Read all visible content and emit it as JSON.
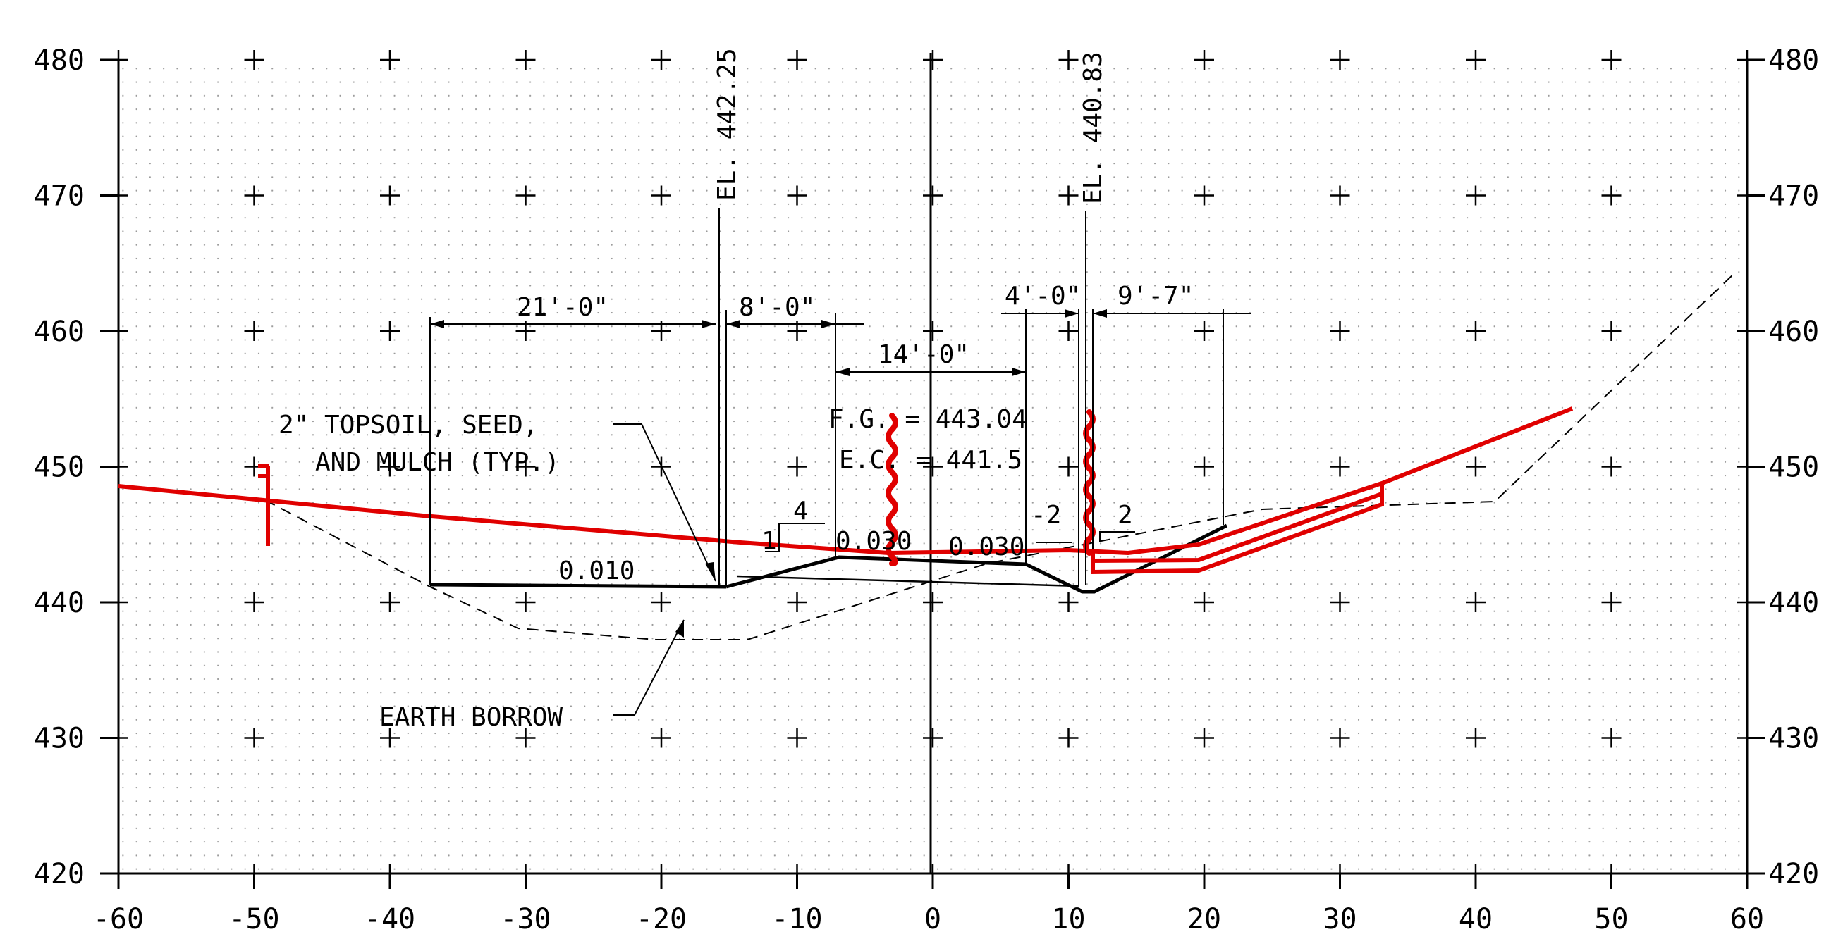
{
  "axes": {
    "x_ticks": [
      "-60",
      "-50",
      "-40",
      "-30",
      "-20",
      "-10",
      "0",
      "10",
      "20",
      "30",
      "40",
      "50",
      "60"
    ],
    "y_ticks_left": [
      "480",
      "470",
      "460",
      "450",
      "440",
      "430",
      "420"
    ],
    "y_ticks_right": [
      "480",
      "470",
      "460",
      "450",
      "440",
      "430",
      "420"
    ],
    "x_range": [
      -60,
      60
    ],
    "y_range": [
      420,
      480
    ]
  },
  "dimensions": {
    "d21": "21'-0\"",
    "d8": "8'-0\"",
    "d14": "14'-0\"",
    "d4": "4'-0\"",
    "d9": "9'-7\""
  },
  "elevations": {
    "left": "EL. 442.25",
    "right": "EL. 440.83"
  },
  "grades": {
    "fg": "F.G. = 443.04",
    "ec": "E.C. = 441.5"
  },
  "slopes": {
    "left_ratio_top": "4",
    "left_ratio_side": "1",
    "right_ratio_top_a": "-2",
    "right_ratio_top_b": "2",
    "cross_left": "0.010",
    "cross_mid": "0.030",
    "cross_right": "0.030"
  },
  "notes": {
    "topsoil_line1": "2\" TOPSOIL, SEED,",
    "topsoil_line2": "AND MULCH (TYP.)",
    "borrow": "EARTH BORROW"
  },
  "colors": {
    "existing_ground": "#e00000",
    "proposed": "#000000",
    "grid": "#000000"
  }
}
